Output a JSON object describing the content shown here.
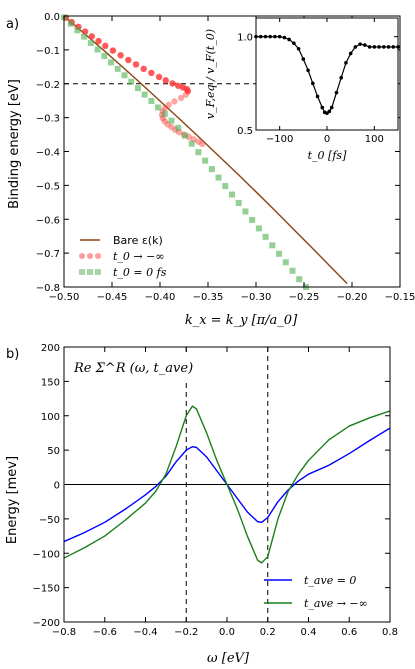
{
  "figure": {
    "background": "#ffffff"
  },
  "chart_data": [
    {
      "panel_label": "a)",
      "type": "scatter",
      "xlabel": "k_x = k_y [π/a_0]",
      "ylabel": "Binding energy [eV]",
      "xlim": [
        -0.5,
        -0.15
      ],
      "ylim": [
        -0.8,
        0.0
      ],
      "xticks": [
        "−0.50",
        "−0.45",
        "−0.40",
        "−0.35",
        "−0.30",
        "−0.25",
        "−0.20",
        "−0.15"
      ],
      "yticks": [
        "0.0",
        "−0.1",
        "−0.2",
        "−0.3",
        "−0.4",
        "−0.5",
        "−0.6",
        "−0.7",
        "−0.8"
      ],
      "xtick_values": [
        -0.5,
        -0.45,
        -0.4,
        -0.35,
        -0.3,
        -0.25,
        -0.2,
        -0.15
      ],
      "ytick_values": [
        0.0,
        -0.1,
        -0.2,
        -0.3,
        -0.4,
        -0.5,
        -0.6,
        -0.7,
        -0.8
      ],
      "grid": false,
      "legend_position": "lower-left",
      "reference_line": {
        "y": -0.2,
        "style": "dashed",
        "color": "#000000"
      },
      "series": [
        {
          "name": "Bare ε(k)",
          "kind": "line",
          "color": "#8b4513",
          "x": [
            -0.5,
            -0.48,
            -0.46,
            -0.44,
            -0.42,
            -0.4,
            -0.38,
            -0.36,
            -0.34,
            -0.32,
            -0.3,
            -0.28,
            -0.26,
            -0.24,
            -0.22,
            -0.205
          ],
          "y": [
            0.0,
            -0.049,
            -0.098,
            -0.148,
            -0.199,
            -0.251,
            -0.303,
            -0.356,
            -0.41,
            -0.464,
            -0.519,
            -0.575,
            -0.632,
            -0.689,
            -0.747,
            -0.79
          ]
        },
        {
          "name": "t_0 → −∞",
          "kind": "markers",
          "marker": "circle",
          "color": "#ff3b3b",
          "x": [
            -0.498,
            -0.492,
            -0.485,
            -0.478,
            -0.471,
            -0.464,
            -0.457,
            -0.449,
            -0.441,
            -0.433,
            -0.425,
            -0.417,
            -0.409,
            -0.401,
            -0.394,
            -0.387,
            -0.381,
            -0.376,
            -0.372,
            -0.371,
            -0.373,
            -0.378,
            -0.385,
            -0.391,
            -0.395,
            -0.397,
            -0.398,
            -0.397,
            -0.395,
            -0.392,
            -0.388,
            -0.384,
            -0.38,
            -0.375,
            -0.37,
            -0.365,
            -0.36,
            -0.356
          ],
          "y": [
            -0.005,
            -0.018,
            -0.032,
            -0.046,
            -0.06,
            -0.074,
            -0.088,
            -0.102,
            -0.116,
            -0.13,
            -0.143,
            -0.156,
            -0.168,
            -0.18,
            -0.19,
            -0.199,
            -0.206,
            -0.211,
            -0.216,
            -0.222,
            -0.232,
            -0.242,
            -0.252,
            -0.262,
            -0.272,
            -0.282,
            -0.292,
            -0.302,
            -0.311,
            -0.32,
            -0.328,
            -0.336,
            -0.343,
            -0.35,
            -0.357,
            -0.364,
            -0.371,
            -0.378
          ]
        },
        {
          "name": "t_0 = 0 fs",
          "kind": "markers",
          "marker": "square",
          "color": "#4caf50",
          "x": [
            -0.5,
            -0.493,
            -0.486,
            -0.479,
            -0.472,
            -0.465,
            -0.458,
            -0.451,
            -0.444,
            -0.437,
            -0.43,
            -0.423,
            -0.416,
            -0.409,
            -0.402,
            -0.395,
            -0.388,
            -0.381,
            -0.374,
            -0.367,
            -0.36,
            -0.353,
            -0.346,
            -0.339,
            -0.332,
            -0.325,
            -0.318,
            -0.311,
            -0.304,
            -0.297,
            -0.29,
            -0.283,
            -0.276,
            -0.269,
            -0.262,
            -0.255,
            -0.248
          ],
          "y": [
            -0.004,
            -0.023,
            -0.042,
            -0.061,
            -0.08,
            -0.099,
            -0.118,
            -0.137,
            -0.156,
            -0.175,
            -0.194,
            -0.213,
            -0.232,
            -0.251,
            -0.27,
            -0.289,
            -0.309,
            -0.33,
            -0.353,
            -0.377,
            -0.402,
            -0.427,
            -0.452,
            -0.477,
            -0.502,
            -0.527,
            -0.552,
            -0.577,
            -0.602,
            -0.627,
            -0.652,
            -0.677,
            -0.702,
            -0.727,
            -0.752,
            -0.777,
            -0.8
          ]
        }
      ],
      "inset": {
        "type": "scatter",
        "xlabel": "t_0 [fs]",
        "ylabel": "v_F,eq / v_F(t_0)",
        "xlim": [
          -150,
          150
        ],
        "ylim": [
          0.5,
          1.1
        ],
        "xticks": [
          "−100",
          "0",
          "100"
        ],
        "yticks": [
          "0.5",
          "1.0"
        ],
        "xtick_values": [
          -100,
          0,
          100
        ],
        "ytick_values": [
          0.5,
          1.0
        ],
        "series": [
          {
            "name": "",
            "kind": "line+markers",
            "color": "#000000",
            "x": [
              -150,
              -140,
              -130,
              -120,
              -110,
              -100,
              -90,
              -80,
              -70,
              -60,
              -50,
              -40,
              -30,
              -20,
              -10,
              -5,
              0,
              5,
              10,
              20,
              30,
              40,
              50,
              60,
              70,
              80,
              90,
              100,
              110,
              120,
              130,
              140,
              150
            ],
            "y": [
              1.0,
              1.0,
              1.0,
              1.0,
              1.0,
              1.0,
              0.995,
              0.985,
              0.965,
              0.935,
              0.88,
              0.82,
              0.75,
              0.68,
              0.62,
              0.595,
              0.59,
              0.6,
              0.62,
              0.7,
              0.78,
              0.86,
              0.91,
              0.945,
              0.96,
              0.955,
              0.945,
              0.945,
              0.945,
              0.945,
              0.945,
              0.945,
              0.945
            ]
          }
        ]
      }
    },
    {
      "panel_label": "b)",
      "type": "line",
      "title": "Re Σ^R (ω, t_ave)",
      "xlabel": "ω [eV]",
      "ylabel": "Energy [mev]",
      "xlim": [
        -0.8,
        0.8
      ],
      "ylim": [
        -200,
        200
      ],
      "xticks": [
        "−0.8",
        "−0.6",
        "−0.4",
        "−0.2",
        "0.0",
        "0.2",
        "0.4",
        "0.6",
        "0.8"
      ],
      "yticks": [
        "200",
        "150",
        "100",
        "50",
        "0",
        "−50",
        "−100",
        "−150",
        "−200"
      ],
      "xtick_values": [
        -0.8,
        -0.6,
        -0.4,
        -0.2,
        0.0,
        0.2,
        0.4,
        0.6,
        0.8
      ],
      "ytick_values": [
        200,
        150,
        100,
        50,
        0,
        -50,
        -100,
        -150,
        -200
      ],
      "grid": false,
      "legend_position": "lower-right",
      "reference_lines": [
        {
          "x": -0.2,
          "style": "dashed",
          "color": "#000000"
        },
        {
          "x": 0.2,
          "style": "dashed",
          "color": "#000000"
        },
        {
          "y": 0,
          "style": "solid",
          "color": "#000000"
        }
      ],
      "series": [
        {
          "name": "t_ave = 0",
          "color": "#0000ff",
          "x": [
            -0.8,
            -0.7,
            -0.6,
            -0.5,
            -0.4,
            -0.35,
            -0.3,
            -0.25,
            -0.2,
            -0.17,
            -0.15,
            -0.1,
            -0.05,
            0.0,
            0.05,
            0.1,
            0.15,
            0.17,
            0.2,
            0.25,
            0.3,
            0.35,
            0.4,
            0.5,
            0.6,
            0.7,
            0.8
          ],
          "y": [
            -83,
            -70,
            -55,
            -36,
            -15,
            -3,
            12,
            33,
            50,
            55,
            54,
            40,
            20,
            0,
            -20,
            -40,
            -54,
            -55,
            -48,
            -25,
            -8,
            5,
            15,
            28,
            45,
            64,
            82
          ]
        },
        {
          "name": "t_ave → −∞",
          "color": "#1a7f1a",
          "x": [
            -0.8,
            -0.7,
            -0.6,
            -0.5,
            -0.4,
            -0.35,
            -0.3,
            -0.25,
            -0.2,
            -0.17,
            -0.15,
            -0.1,
            -0.05,
            0.0,
            0.05,
            0.1,
            0.15,
            0.17,
            0.2,
            0.25,
            0.3,
            0.35,
            0.4,
            0.5,
            0.6,
            0.7,
            0.8
          ],
          "y": [
            -107,
            -92,
            -75,
            -52,
            -27,
            -10,
            15,
            55,
            100,
            114,
            110,
            75,
            35,
            0,
            -35,
            -75,
            -110,
            -114,
            -105,
            -50,
            -10,
            15,
            35,
            65,
            85,
            97,
            107
          ]
        }
      ]
    }
  ]
}
